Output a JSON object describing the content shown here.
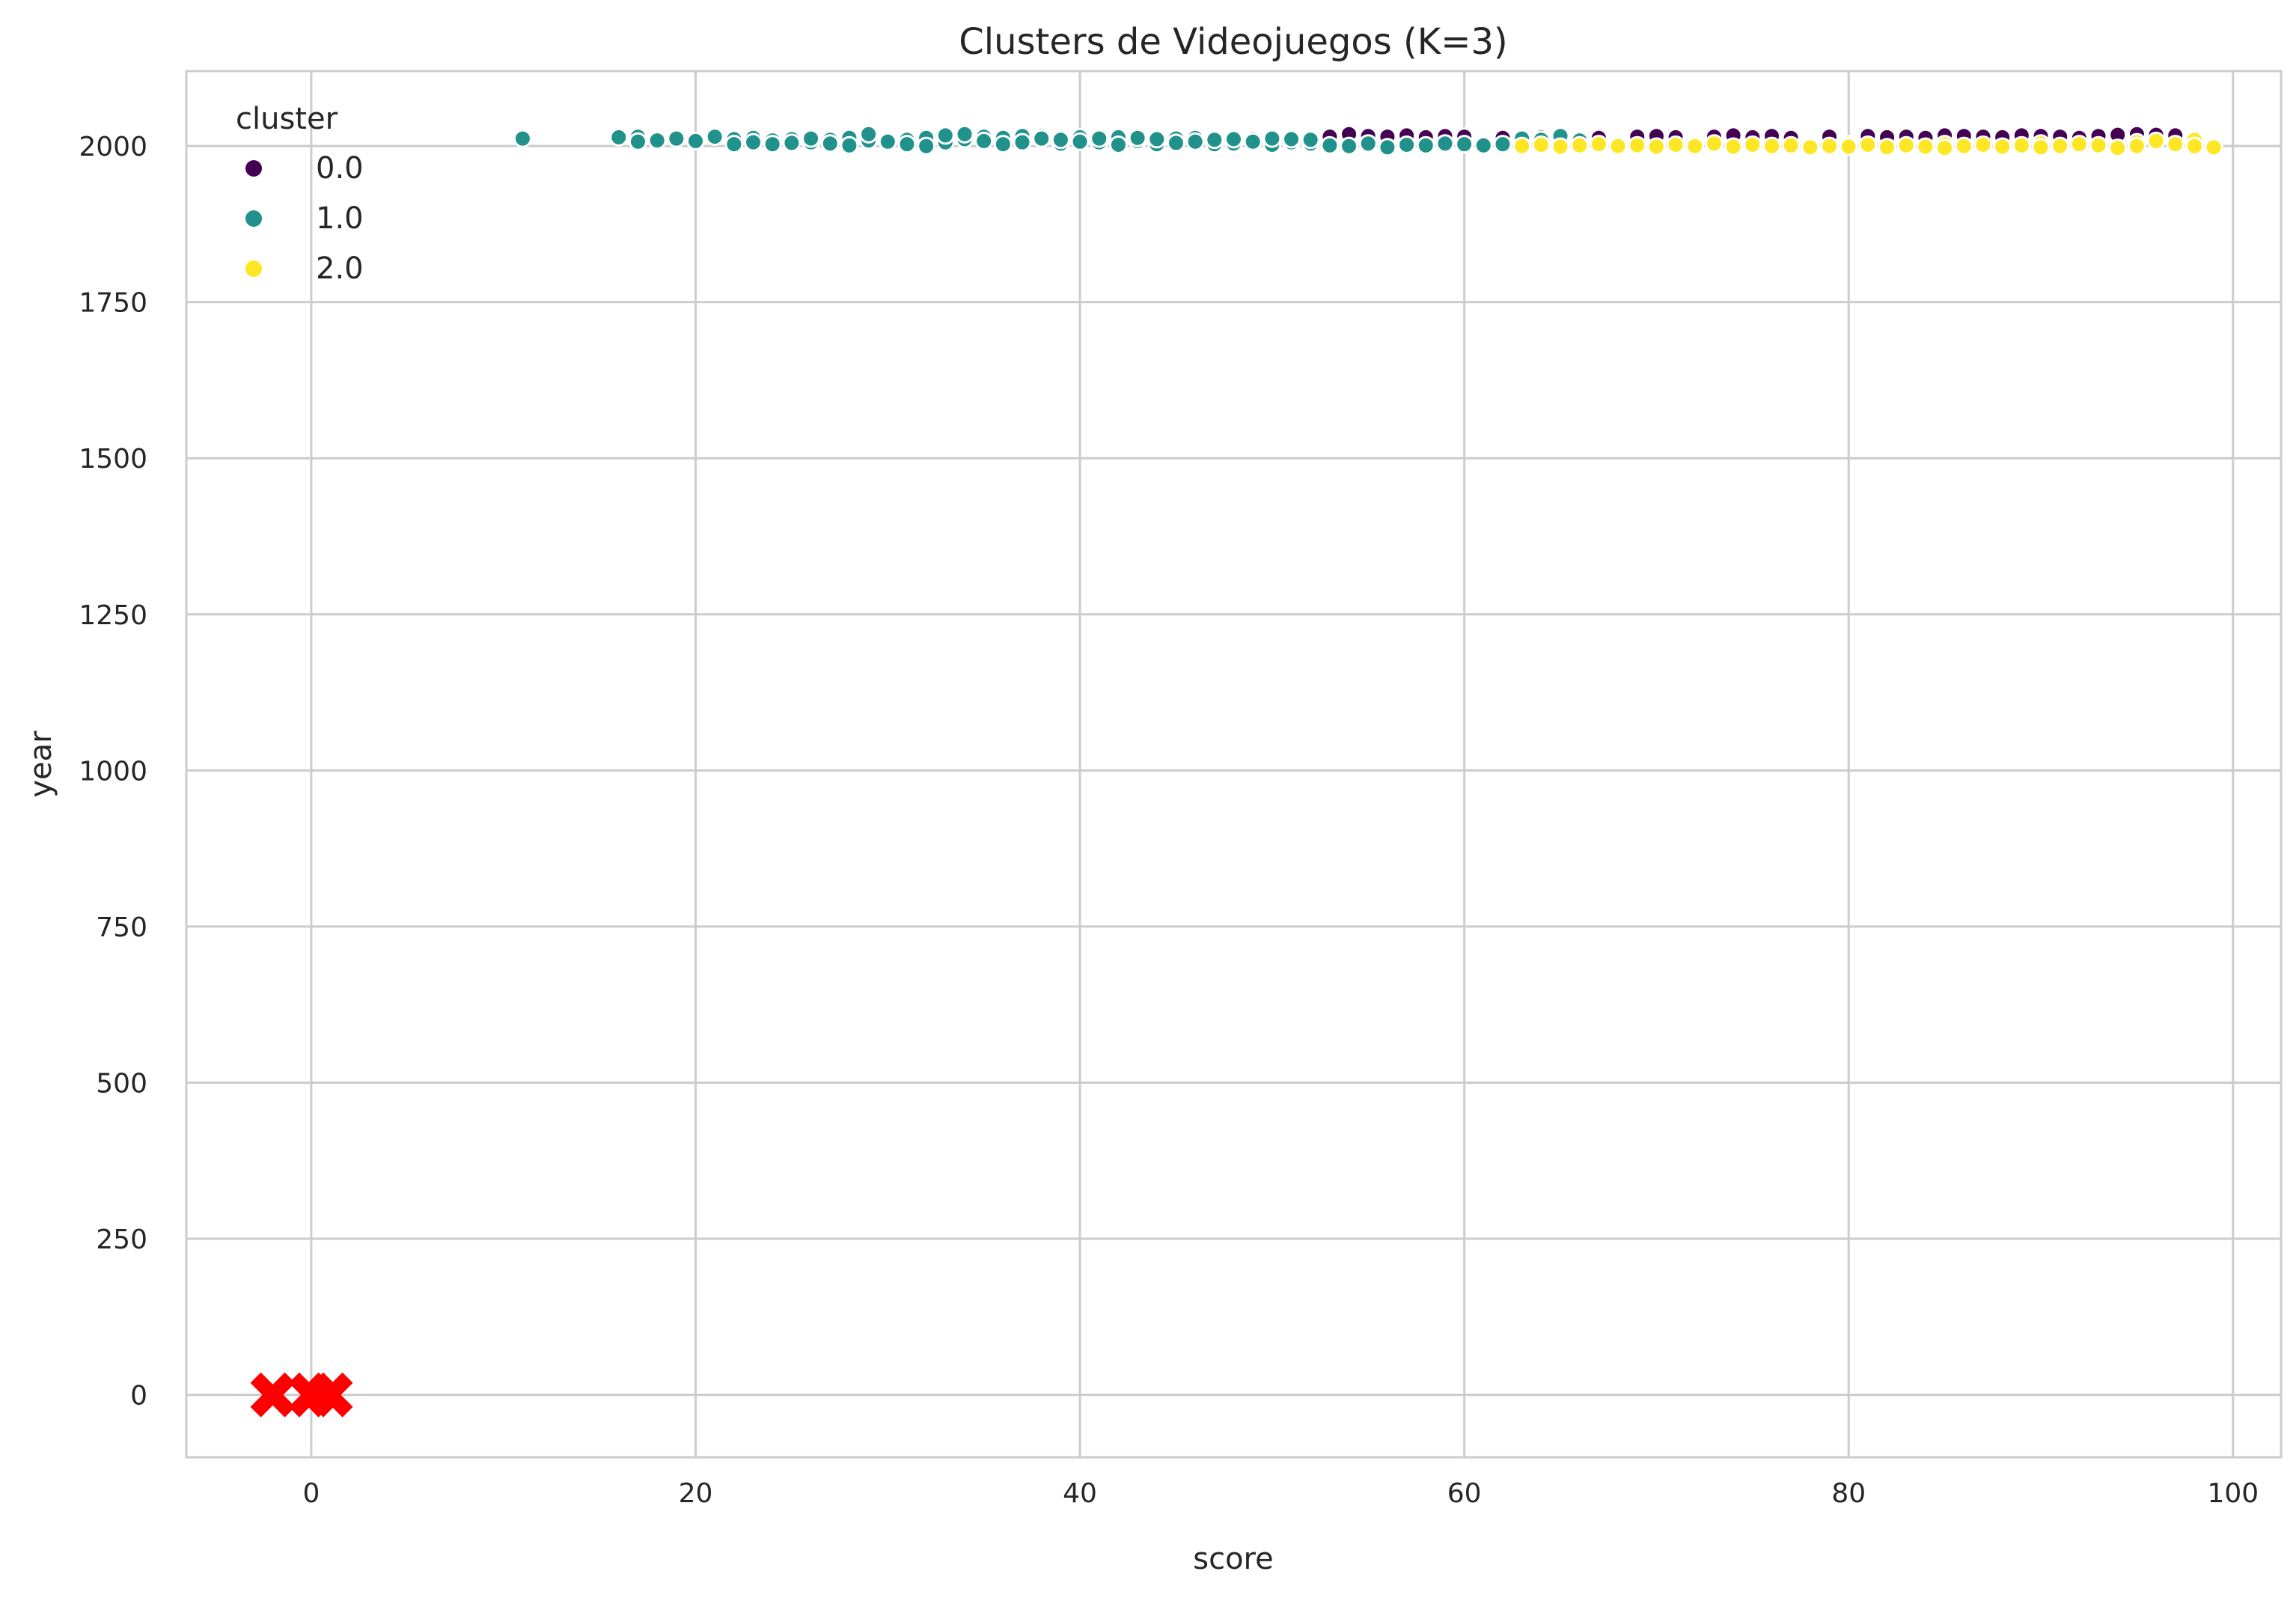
{
  "chart_data": {
    "type": "scatter",
    "title": "Clusters de Videojuegos (K=3)",
    "xlabel": "score",
    "ylabel": "year",
    "xlim": [
      -6.5,
      102.5
    ],
    "ylim": [
      -100,
      2120
    ],
    "xticks": [
      0,
      20,
      40,
      60,
      80,
      100
    ],
    "yticks": [
      0,
      250,
      500,
      750,
      1000,
      1250,
      1500,
      1750,
      2000
    ],
    "grid": true,
    "legend": {
      "title": "cluster",
      "position": "top-left",
      "entries": [
        {
          "label": "0.0",
          "color": "#440154"
        },
        {
          "label": "1.0",
          "color": "#21918c"
        },
        {
          "label": "2.0",
          "color": "#fde725"
        }
      ]
    },
    "series": [
      {
        "name": "0.0",
        "color": "#440154",
        "points": [
          [
            53,
            2015
          ],
          [
            54,
            2019
          ],
          [
            55,
            2016
          ],
          [
            56,
            2015
          ],
          [
            57,
            2017
          ],
          [
            58,
            2014
          ],
          [
            59,
            2016
          ],
          [
            60,
            2015
          ],
          [
            62,
            2013
          ],
          [
            64,
            2014
          ],
          [
            65,
            2012
          ],
          [
            67,
            2013
          ],
          [
            69,
            2015
          ],
          [
            70,
            2016
          ],
          [
            71,
            2014
          ],
          [
            73,
            2015
          ],
          [
            74,
            2017
          ],
          [
            75,
            2014
          ],
          [
            76,
            2016
          ],
          [
            77,
            2013
          ],
          [
            79,
            2015
          ],
          [
            81,
            2016
          ],
          [
            82,
            2014
          ],
          [
            83,
            2015
          ],
          [
            84,
            2013
          ],
          [
            85,
            2017
          ],
          [
            86,
            2016
          ],
          [
            87,
            2015
          ],
          [
            88,
            2014
          ],
          [
            89,
            2017
          ],
          [
            90,
            2016
          ],
          [
            91,
            2015
          ],
          [
            92,
            2013
          ],
          [
            93,
            2016
          ],
          [
            94,
            2018
          ],
          [
            95,
            2019
          ],
          [
            96,
            2018
          ],
          [
            97,
            2017
          ]
        ]
      },
      {
        "name": "1.0",
        "color": "#21918c",
        "points": [
          [
            11,
            2012
          ],
          [
            16,
            2014
          ],
          [
            17,
            2015
          ],
          [
            17,
            2007
          ],
          [
            18,
            2009
          ],
          [
            19,
            2012
          ],
          [
            20,
            2008
          ],
          [
            21,
            2015
          ],
          [
            22,
            2011
          ],
          [
            22,
            2003
          ],
          [
            23,
            2013
          ],
          [
            23,
            2006
          ],
          [
            24,
            2009
          ],
          [
            24,
            2003
          ],
          [
            25,
            2011
          ],
          [
            25,
            2005
          ],
          [
            26,
            2006
          ],
          [
            26,
            2012
          ],
          [
            27,
            2010
          ],
          [
            27,
            2004
          ],
          [
            28,
            2013
          ],
          [
            28,
            2001
          ],
          [
            29,
            2009
          ],
          [
            29,
            2019
          ],
          [
            30,
            2007
          ],
          [
            31,
            2010
          ],
          [
            31,
            2003
          ],
          [
            32,
            2013
          ],
          [
            32,
            2000
          ],
          [
            33,
            2006
          ],
          [
            33,
            2017
          ],
          [
            34,
            2011
          ],
          [
            34,
            2019
          ],
          [
            35,
            2015
          ],
          [
            35,
            2008
          ],
          [
            36,
            2013
          ],
          [
            36,
            2003
          ],
          [
            37,
            2016
          ],
          [
            37,
            2006
          ],
          [
            38,
            2016
          ],
          [
            38,
            2012
          ],
          [
            39,
            2004
          ],
          [
            39,
            2010
          ],
          [
            40,
            2014
          ],
          [
            40,
            2007
          ],
          [
            41,
            2006
          ],
          [
            41,
            2012
          ],
          [
            42,
            2014
          ],
          [
            42,
            2002
          ],
          [
            43,
            2008
          ],
          [
            43,
            2013
          ],
          [
            44,
            2003
          ],
          [
            44,
            2011
          ],
          [
            45,
            2012
          ],
          [
            45,
            2005
          ],
          [
            46,
            2013
          ],
          [
            46,
            2007
          ],
          [
            47,
            2003
          ],
          [
            47,
            2010
          ],
          [
            48,
            2004
          ],
          [
            48,
            2011
          ],
          [
            49,
            2011
          ],
          [
            49,
            2007
          ],
          [
            50,
            2002
          ],
          [
            50,
            2012
          ],
          [
            51,
            2006
          ],
          [
            51,
            2011
          ],
          [
            52,
            2004
          ],
          [
            52,
            2010
          ],
          [
            53,
            2001
          ],
          [
            54,
            2000
          ],
          [
            55,
            2004
          ],
          [
            56,
            1998
          ],
          [
            57,
            2002
          ],
          [
            58,
            2001
          ],
          [
            59,
            2004
          ],
          [
            60,
            2003
          ],
          [
            61,
            2001
          ],
          [
            62,
            2003
          ],
          [
            63,
            2012
          ],
          [
            64,
            2010
          ],
          [
            65,
            2016
          ],
          [
            66,
            2009
          ]
        ]
      },
      {
        "name": "2.0",
        "color": "#fde725",
        "points": [
          [
            63,
            2000
          ],
          [
            64,
            2002
          ],
          [
            65,
            1999
          ],
          [
            66,
            2001
          ],
          [
            67,
            2003
          ],
          [
            68,
            2000
          ],
          [
            69,
            2001
          ],
          [
            70,
            1999
          ],
          [
            71,
            2002
          ],
          [
            72,
            2000
          ],
          [
            73,
            2004
          ],
          [
            74,
            1999
          ],
          [
            75,
            2002
          ],
          [
            76,
            2000
          ],
          [
            77,
            2001
          ],
          [
            78,
            1998
          ],
          [
            79,
            2000
          ],
          [
            80,
            2003
          ],
          [
            80,
            1999
          ],
          [
            81,
            2002
          ],
          [
            82,
            1998
          ],
          [
            83,
            2001
          ],
          [
            84,
            1999
          ],
          [
            85,
            2003
          ],
          [
            85,
            1997
          ],
          [
            86,
            2000
          ],
          [
            87,
            2002
          ],
          [
            88,
            1999
          ],
          [
            89,
            2001
          ],
          [
            90,
            2004
          ],
          [
            90,
            1998
          ],
          [
            91,
            2000
          ],
          [
            92,
            2003
          ],
          [
            93,
            2001
          ],
          [
            94,
            1997
          ],
          [
            95,
            2006
          ],
          [
            95,
            2000
          ],
          [
            96,
            2008
          ],
          [
            97,
            2003
          ],
          [
            98,
            2010
          ],
          [
            98,
            2000
          ],
          [
            99,
            1998
          ]
        ]
      },
      {
        "name": "",
        "marker": "X",
        "color": "#ff0000",
        "points": [
          [
            -2,
            0
          ],
          [
            0,
            0
          ],
          [
            1,
            0
          ]
        ]
      }
    ]
  }
}
